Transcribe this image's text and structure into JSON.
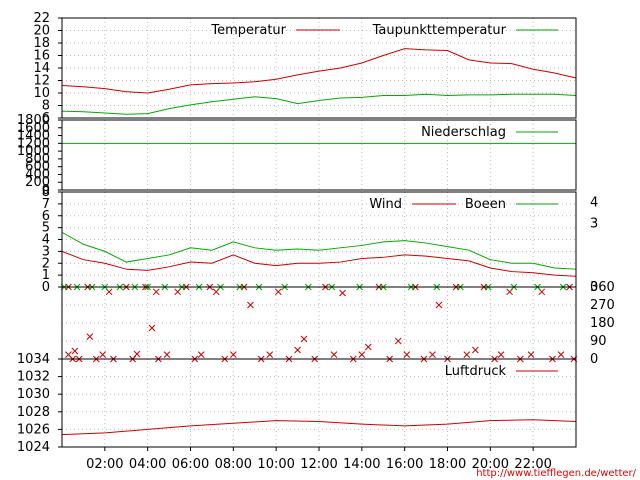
{
  "source_url": "http://www.tiefflegen.de/wetter/",
  "x_axis": {
    "ticks": [
      "02:00",
      "04:00",
      "06:00",
      "08:00",
      "10:00",
      "12:00",
      "14:00",
      "16:00",
      "18:00",
      "20:00",
      "22:00"
    ],
    "tick_hours": [
      2,
      4,
      6,
      8,
      10,
      12,
      14,
      16,
      18,
      20,
      22
    ],
    "range_hours": [
      0,
      24
    ]
  },
  "chart_data": [
    {
      "type": "line",
      "id": "temperature",
      "ylim": [
        6,
        22
      ],
      "yticks": [
        "6",
        "8",
        "10",
        "12",
        "14",
        "16",
        "18",
        "20",
        "22"
      ],
      "ytick_values": [
        6,
        8,
        10,
        12,
        14,
        16,
        18,
        20,
        22
      ],
      "grid": true,
      "legend_position": "top-right",
      "x": [
        0,
        1,
        2,
        3,
        4,
        5,
        6,
        7,
        8,
        9,
        10,
        11,
        12,
        13,
        14,
        15,
        16,
        17,
        18,
        19,
        20,
        21,
        22,
        23,
        24
      ],
      "series": [
        {
          "name": "Temperatur",
          "color": "#cc0000",
          "values": [
            11.2,
            11.0,
            10.7,
            10.2,
            10.0,
            10.6,
            11.3,
            11.5,
            11.6,
            11.8,
            12.2,
            12.9,
            13.5,
            14.0,
            14.8,
            16.0,
            17.1,
            16.9,
            16.8,
            15.3,
            14.8,
            14.7,
            13.8,
            13.2,
            12.4
          ]
        },
        {
          "name": "Taupunkttemperatur",
          "color": "#00aa00",
          "values": [
            7.1,
            7.0,
            6.8,
            6.6,
            6.7,
            7.5,
            8.1,
            8.6,
            9.0,
            9.4,
            9.1,
            8.3,
            8.8,
            9.2,
            9.3,
            9.6,
            9.6,
            9.8,
            9.6,
            9.7,
            9.7,
            9.8,
            9.8,
            9.8,
            9.6
          ]
        }
      ]
    },
    {
      "type": "line",
      "id": "precipitation",
      "ylim": [
        0,
        1800
      ],
      "yticks": [
        "0",
        "200",
        "400",
        "600",
        "800",
        "1000",
        "1200",
        "1400",
        "1600",
        "1800"
      ],
      "ytick_values": [
        0,
        200,
        400,
        600,
        800,
        1000,
        1200,
        1400,
        1600,
        1800
      ],
      "grid": false,
      "legend_position": "top-right",
      "x": [
        0,
        24
      ],
      "series": [
        {
          "name": "Niederschlag",
          "color": "#00aa00",
          "values": [
            1200,
            1200
          ]
        }
      ]
    },
    {
      "type": "line",
      "id": "wind",
      "ylim": [
        0,
        8
      ],
      "yticks": [
        "0",
        "1",
        "2",
        "3",
        "4",
        "5",
        "6",
        "7",
        "8"
      ],
      "ytick_values": [
        0,
        1,
        2,
        3,
        4,
        5,
        6,
        7,
        8
      ],
      "right_ylim": [
        0,
        4.5
      ],
      "right_yticks": [
        "0",
        "3",
        "4"
      ],
      "right_ytick_values": [
        0,
        3,
        4
      ],
      "grid": true,
      "legend_position": "top-right",
      "x": [
        0,
        1,
        2,
        3,
        4,
        5,
        6,
        7,
        8,
        9,
        10,
        11,
        12,
        13,
        14,
        15,
        16,
        17,
        18,
        19,
        20,
        21,
        22,
        23,
        24
      ],
      "series": [
        {
          "name": "Wind",
          "color": "#cc0000",
          "values": [
            3.0,
            2.3,
            2.0,
            1.5,
            1.4,
            1.7,
            2.1,
            2.0,
            2.7,
            2.0,
            1.8,
            2.0,
            2.0,
            2.1,
            2.4,
            2.5,
            2.7,
            2.6,
            2.4,
            2.2,
            1.6,
            1.3,
            1.2,
            1.0,
            0.9
          ]
        },
        {
          "name": "Boeen",
          "color": "#00aa00",
          "values": [
            4.6,
            3.6,
            3.0,
            2.1,
            2.4,
            2.7,
            3.3,
            3.1,
            3.8,
            3.3,
            3.1,
            3.2,
            3.1,
            3.3,
            3.5,
            3.8,
            3.9,
            3.7,
            3.4,
            3.1,
            2.3,
            2.0,
            2.0,
            1.6,
            1.5
          ]
        }
      ]
    },
    {
      "type": "scatter",
      "id": "wind_direction",
      "ylim": [
        0,
        360
      ],
      "right_yticks": [
        "0",
        "90",
        "180",
        "270",
        "360"
      ],
      "right_ytick_values": [
        0,
        90,
        180,
        270,
        360
      ],
      "grid": true,
      "series": [
        {
          "color": "#cc0000",
          "marker": "x",
          "points": [
            [
              0.3,
              360
            ],
            [
              0.3,
              22
            ],
            [
              0.5,
              0
            ],
            [
              0.6,
              40
            ],
            [
              0.8,
              0
            ],
            [
              1.2,
              360
            ],
            [
              1.3,
              112
            ],
            [
              1.6,
              0
            ],
            [
              1.9,
              22
            ],
            [
              2.2,
              336
            ],
            [
              2.4,
              0
            ],
            [
              3.0,
              360
            ],
            [
              3.3,
              0
            ],
            [
              3.5,
              25
            ],
            [
              3.9,
              360
            ],
            [
              4.2,
              155
            ],
            [
              4.4,
              336
            ],
            [
              4.5,
              0
            ],
            [
              4.9,
              22
            ],
            [
              5.4,
              336
            ],
            [
              5.8,
              360
            ],
            [
              6.2,
              0
            ],
            [
              6.5,
              22
            ],
            [
              6.9,
              360
            ],
            [
              7.2,
              336
            ],
            [
              7.6,
              0
            ],
            [
              8.0,
              22
            ],
            [
              8.5,
              360
            ],
            [
              8.8,
              270
            ],
            [
              9.3,
              0
            ],
            [
              9.7,
              22
            ],
            [
              10.1,
              336
            ],
            [
              10.6,
              0
            ],
            [
              11.0,
              45
            ],
            [
              11.3,
              100
            ],
            [
              11.8,
              0
            ],
            [
              12.3,
              360
            ],
            [
              12.7,
              22
            ],
            [
              13.1,
              330
            ],
            [
              13.6,
              0
            ],
            [
              14.0,
              22
            ],
            [
              14.3,
              60
            ],
            [
              14.8,
              360
            ],
            [
              15.3,
              0
            ],
            [
              15.7,
              90
            ],
            [
              16.1,
              22
            ],
            [
              16.5,
              360
            ],
            [
              16.9,
              0
            ],
            [
              17.3,
              22
            ],
            [
              17.6,
              270
            ],
            [
              18.0,
              0
            ],
            [
              18.4,
              360
            ],
            [
              18.9,
              22
            ],
            [
              19.3,
              45
            ],
            [
              19.7,
              360
            ],
            [
              20.2,
              0
            ],
            [
              20.5,
              22
            ],
            [
              20.9,
              336
            ],
            [
              21.4,
              0
            ],
            [
              21.9,
              22
            ],
            [
              22.4,
              336
            ],
            [
              22.9,
              0
            ],
            [
              23.3,
              22
            ],
            [
              23.7,
              360
            ],
            [
              23.9,
              0
            ]
          ]
        },
        {
          "color": "#00aa00",
          "marker": "x",
          "points": [
            [
              0.1,
              360
            ],
            [
              0.7,
              360
            ],
            [
              1.4,
              360
            ],
            [
              2.0,
              360
            ],
            [
              2.7,
              360
            ],
            [
              3.4,
              360
            ],
            [
              4.0,
              360
            ],
            [
              4.8,
              360
            ],
            [
              5.6,
              360
            ],
            [
              6.4,
              360
            ],
            [
              7.4,
              360
            ],
            [
              8.3,
              360
            ],
            [
              9.2,
              360
            ],
            [
              10.4,
              360
            ],
            [
              11.5,
              360
            ],
            [
              12.6,
              360
            ],
            [
              13.9,
              360
            ],
            [
              15.0,
              360
            ],
            [
              16.3,
              360
            ],
            [
              17.5,
              360
            ],
            [
              18.6,
              360
            ],
            [
              19.9,
              360
            ],
            [
              21.1,
              360
            ],
            [
              22.2,
              360
            ],
            [
              23.4,
              360
            ]
          ]
        }
      ]
    },
    {
      "type": "line",
      "id": "pressure",
      "ylim": [
        1024,
        1034
      ],
      "yticks": [
        "1024",
        "1026",
        "1028",
        "1030",
        "1032",
        "1034"
      ],
      "ytick_values": [
        1024,
        1026,
        1028,
        1030,
        1032,
        1034
      ],
      "grid": true,
      "legend_position": "top-right",
      "x": [
        0,
        2,
        4,
        6,
        8,
        10,
        12,
        14,
        16,
        18,
        20,
        22,
        24
      ],
      "series": [
        {
          "name": "Luftdruck",
          "color": "#cc0000",
          "values": [
            1025.4,
            1025.6,
            1026.0,
            1026.4,
            1026.7,
            1027.0,
            1026.9,
            1026.6,
            1026.4,
            1026.6,
            1027.0,
            1027.1,
            1026.9
          ]
        }
      ]
    }
  ]
}
